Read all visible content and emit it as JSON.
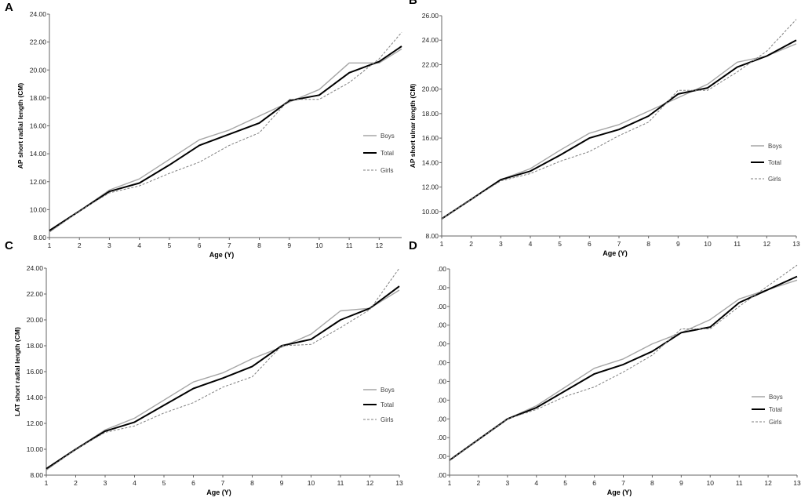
{
  "colors": {
    "boys": "#a6a6a6",
    "total": "#000000",
    "girls": "#7f7f7f",
    "axis": "#666666"
  },
  "chart_data": [
    {
      "type": "line",
      "panel_label": "A",
      "title": "",
      "xlabel": "Age (Y)",
      "ylabel": "AP short radial length (CM)",
      "x": [
        1,
        2,
        3,
        4,
        5,
        6,
        7,
        8,
        9,
        10,
        11,
        12,
        12.75
      ],
      "x_ticks": [
        "1",
        "2",
        "3",
        "4",
        "5",
        "6",
        "7",
        "8",
        "9",
        "10",
        "11",
        "12"
      ],
      "xlim": [
        1,
        12.75
      ],
      "ylim": [
        8,
        24
      ],
      "y_ticks": [
        "8.00",
        "10.00",
        "12.00",
        "14.00",
        "16.00",
        "18.00",
        "20.00",
        "22.00",
        "24.00"
      ],
      "legend_position": "right",
      "series": [
        {
          "name": "Boys",
          "values": [
            8.4,
            9.9,
            11.4,
            12.2,
            13.6,
            15.0,
            15.7,
            16.7,
            17.7,
            18.6,
            20.5,
            20.5,
            21.5
          ]
        },
        {
          "name": "Total",
          "values": [
            8.5,
            9.9,
            11.3,
            11.9,
            13.2,
            14.6,
            15.4,
            16.2,
            17.8,
            18.2,
            19.8,
            20.6,
            21.7
          ]
        },
        {
          "name": "Girls",
          "values": [
            8.4,
            9.9,
            11.2,
            11.7,
            12.6,
            13.4,
            14.6,
            15.5,
            17.9,
            17.9,
            19.1,
            20.8,
            22.7
          ]
        }
      ]
    },
    {
      "type": "line",
      "panel_label": "B",
      "title": "",
      "xlabel": "Age (Y)",
      "ylabel": "AP short ulnar length (CM)",
      "x": [
        1,
        2,
        3,
        4,
        5,
        6,
        7,
        8,
        9,
        10,
        11,
        12,
        13
      ],
      "x_ticks": [
        "1",
        "2",
        "3",
        "4",
        "5",
        "6",
        "7",
        "8",
        "9",
        "10",
        "11",
        "12",
        "13"
      ],
      "xlim": [
        1,
        13
      ],
      "ylim": [
        8,
        26
      ],
      "y_ticks": [
        "8.00",
        "10.00",
        "12.00",
        "14.00",
        "16.00",
        "18.00",
        "20.00",
        "22.00",
        "24.00",
        "26.00"
      ],
      "legend_position": "right",
      "series": [
        {
          "name": "Boys",
          "values": [
            9.4,
            11.0,
            12.6,
            13.5,
            15.0,
            16.4,
            17.1,
            18.2,
            19.3,
            20.4,
            22.2,
            22.7,
            23.7
          ]
        },
        {
          "name": "Total",
          "values": [
            9.4,
            11.0,
            12.6,
            13.3,
            14.6,
            16.0,
            16.7,
            17.8,
            19.6,
            20.1,
            21.8,
            22.7,
            24.0
          ]
        },
        {
          "name": "Girls",
          "values": [
            9.4,
            11.0,
            12.5,
            13.1,
            14.1,
            14.9,
            16.2,
            17.3,
            19.9,
            19.9,
            21.4,
            23.1,
            25.7
          ]
        }
      ]
    },
    {
      "type": "line",
      "panel_label": "C",
      "title": "",
      "xlabel": "Age (Y)",
      "ylabel": "LAT short radial length (CM)",
      "x": [
        1,
        2,
        3,
        4,
        5,
        6,
        7,
        8,
        9,
        10,
        11,
        12,
        13
      ],
      "x_ticks": [
        "1",
        "2",
        "3",
        "4",
        "5",
        "6",
        "7",
        "8",
        "9",
        "10",
        "11",
        "12",
        "13"
      ],
      "xlim": [
        1,
        13
      ],
      "ylim": [
        8,
        24
      ],
      "y_ticks": [
        "8.00",
        "10.00",
        "12.00",
        "14.00",
        "16.00",
        "18.00",
        "20.00",
        "22.00",
        "24.00"
      ],
      "legend_position": "right",
      "series": [
        {
          "name": "Boys",
          "values": [
            8.4,
            10.0,
            11.5,
            12.4,
            13.8,
            15.2,
            15.9,
            17.0,
            17.9,
            18.9,
            20.7,
            20.9,
            22.3
          ]
        },
        {
          "name": "Total",
          "values": [
            8.5,
            10.0,
            11.4,
            12.1,
            13.4,
            14.7,
            15.5,
            16.4,
            18.0,
            18.5,
            20.0,
            20.9,
            22.6
          ]
        },
        {
          "name": "Girls",
          "values": [
            8.4,
            10.0,
            11.3,
            11.8,
            12.8,
            13.6,
            14.8,
            15.6,
            18.0,
            18.1,
            19.4,
            20.8,
            24.0
          ]
        }
      ]
    },
    {
      "type": "line",
      "panel_label": "D",
      "title": "",
      "xlabel": "Age (Y)",
      "ylabel": "",
      "x": [
        1,
        2,
        3,
        4,
        5,
        6,
        7,
        8,
        9,
        10,
        11,
        12,
        13
      ],
      "x_ticks": [
        "1",
        "2",
        "3",
        "4",
        "5",
        "6",
        "7",
        "8",
        "9",
        "10",
        "11",
        "12",
        "13"
      ],
      "xlim": [
        1,
        13
      ],
      "ylim": [
        0,
        11
      ],
      "y_ticks": [
        ".00",
        ".00",
        ".00",
        ".00",
        ".00",
        ".00",
        ".00",
        ".00",
        ".00",
        ".00",
        ".00",
        ".00"
      ],
      "legend_position": "right",
      "series": [
        {
          "name": "Boys",
          "values": [
            0.8,
            1.9,
            3.0,
            3.7,
            4.7,
            5.7,
            6.2,
            7.0,
            7.6,
            8.3,
            9.4,
            9.9,
            10.4
          ]
        },
        {
          "name": "Total",
          "values": [
            0.8,
            1.9,
            3.0,
            3.6,
            4.5,
            5.4,
            5.9,
            6.6,
            7.6,
            7.9,
            9.2,
            9.9,
            10.6
          ]
        },
        {
          "name": "Girls",
          "values": [
            0.8,
            1.9,
            3.0,
            3.5,
            4.2,
            4.7,
            5.5,
            6.4,
            7.8,
            7.8,
            9.0,
            10.1,
            11.2
          ]
        }
      ]
    }
  ]
}
